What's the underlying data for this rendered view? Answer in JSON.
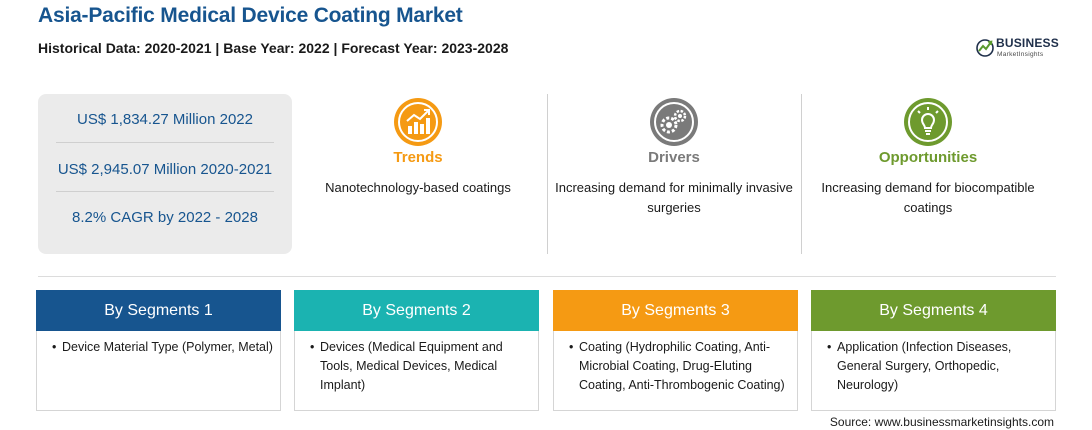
{
  "header": {
    "title": "Asia-Pacific Medical Device Coating Market",
    "subtitle": "Historical Data: 2020-2021 | Base Year: 2022 | Forecast Year: 2023-2028"
  },
  "logo": {
    "name": "BUSINESS",
    "tagline": "MarketInsights",
    "color": "#1f2f4a",
    "accent": "#5a9a2e"
  },
  "stats": [
    "US$ 1,834.27 Million 2022",
    "US$ 2,945.07 Million 2020-2021",
    "8.2% CAGR by 2022 - 2028"
  ],
  "features": [
    {
      "label": "Trends",
      "text": "Nanotechnology-based coatings",
      "icon": "trend-chart-icon",
      "color": "#f59a13"
    },
    {
      "label": "Drivers",
      "text": "Increasing demand for minimally invasive surgeries",
      "icon": "gears-icon",
      "color": "#7a7a7a"
    },
    {
      "label": "Opportunities",
      "text": "Increasing demand for biocompatible coatings",
      "icon": "lightbulb-icon",
      "color": "#6e9a2e"
    }
  ],
  "segments": [
    {
      "title": "By Segments 1",
      "bullet": "•",
      "text": "Device Material Type (Polymer, Metal)",
      "color": "#17558f"
    },
    {
      "title": "By Segments 2",
      "bullet": "•",
      "text": "Devices (Medical Equipment and Tools, Medical Devices, Medical Implant)",
      "color": "#1bb3b1"
    },
    {
      "title": "By Segments 3",
      "bullet": "•",
      "text": "Coating (Hydrophilic Coating, Anti-Microbial Coating, Drug-Eluting Coating, Anti-Thrombogenic Coating)",
      "color": "#f59a13"
    },
    {
      "title": "By Segments 4",
      "bullet": "•",
      "text": "Application (Infection Diseases, General Surgery, Orthopedic, Neurology)",
      "color": "#6e9a2e"
    }
  ],
  "footer": {
    "source": "Source: www.businessmarketinsights.com"
  }
}
